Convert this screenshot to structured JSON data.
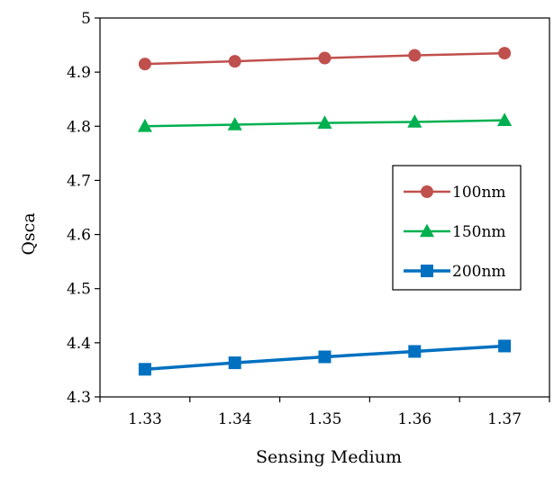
{
  "chart_data": {
    "type": "line",
    "xlabel": "Sensing Medium",
    "ylabel": "Qsca",
    "x": [
      1.33,
      1.34,
      1.35,
      1.36,
      1.37
    ],
    "x_tick_labels": [
      "1.33",
      "1.34",
      "1.35",
      "1.36",
      "1.37"
    ],
    "ylim": [
      4.3,
      5.0
    ],
    "y_ticks": [
      4.3,
      4.4,
      4.5,
      4.6,
      4.7,
      4.8,
      4.9,
      5.0
    ],
    "y_tick_labels": [
      "4.3",
      "4.4",
      "4.5",
      "4.6",
      "4.7",
      "4.8",
      "4.9",
      "5"
    ],
    "grid": false,
    "legend_position": "right",
    "series": [
      {
        "name": "100nm",
        "color": "#C0504D",
        "marker": "circle",
        "values": [
          4.915,
          4.92,
          4.926,
          4.931,
          4.935
        ]
      },
      {
        "name": "150nm",
        "color": "#00B050",
        "marker": "triangle",
        "values": [
          4.8,
          4.803,
          4.806,
          4.808,
          4.811
        ]
      },
      {
        "name": "200nm",
        "color": "#0070C0",
        "marker": "square",
        "values": [
          4.351,
          4.363,
          4.374,
          4.384,
          4.394
        ]
      }
    ]
  }
}
